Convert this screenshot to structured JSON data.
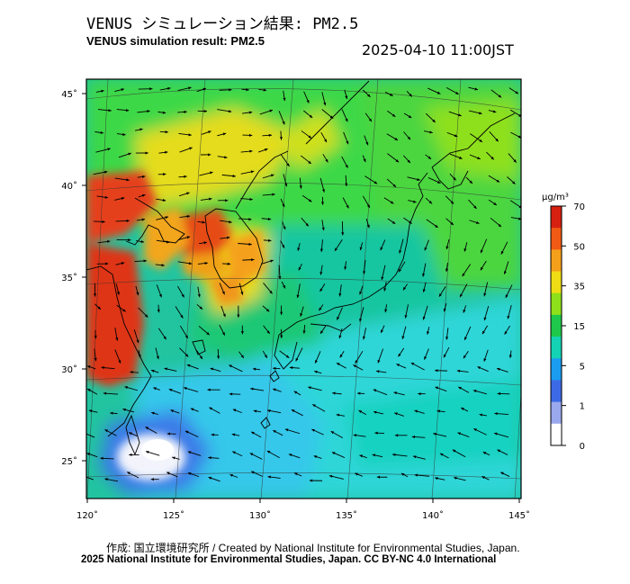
{
  "title_jp": "VENUS シミュレーション結果: PM2.5",
  "title_en": "VENUS simulation result: PM2.5",
  "timestamp": "2025-04-10 11:00JST",
  "lon_ticks": [
    {
      "value": 120,
      "label": "120˚"
    },
    {
      "value": 125,
      "label": "125˚"
    },
    {
      "value": 130,
      "label": "130˚"
    },
    {
      "value": 135,
      "label": "135˚"
    },
    {
      "value": 140,
      "label": "140˚"
    },
    {
      "value": 145,
      "label": "145˚"
    }
  ],
  "lat_ticks": [
    {
      "value": 45,
      "label": "45˚"
    },
    {
      "value": 40,
      "label": "40˚"
    },
    {
      "value": 35,
      "label": "35˚"
    },
    {
      "value": 30,
      "label": "30˚"
    },
    {
      "value": 25,
      "label": "25˚"
    }
  ],
  "colorbar": {
    "unit": "μg/m³",
    "labels": [
      "70",
      "50",
      "35",
      "15",
      "5",
      "1",
      "0"
    ],
    "colors": [
      "#d82010",
      "#f05a14",
      "#f5a01a",
      "#eedc14",
      "#8ee01a",
      "#1ec84a",
      "#14d2b4",
      "#1a9cf0",
      "#3c6ae6",
      "#9aa8ee",
      "#ffffff"
    ]
  },
  "credit_jp": "作成: 国立環境研究所 / Created by National Institute for Environmental Studies, Japan.",
  "credit_en": "2025 National Institute for Environmental Studies, Japan. CC BY-NC 4.0 International"
}
